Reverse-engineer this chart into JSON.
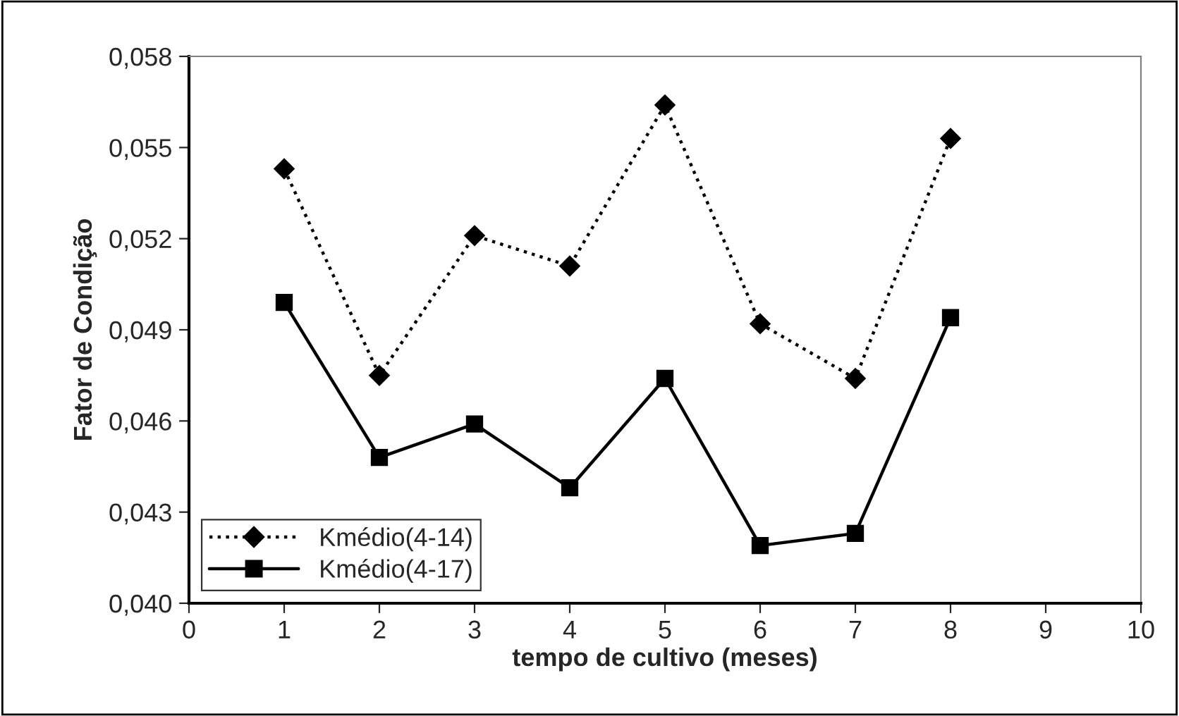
{
  "chart_data": {
    "type": "line",
    "xlabel": "tempo de cultivo (meses)",
    "ylabel": "Fator de Condição",
    "x": [
      1,
      2,
      3,
      4,
      5,
      6,
      7,
      8
    ],
    "series": [
      {
        "name": "Kmédio(4-14)",
        "color": "#000000",
        "marker": "diamond",
        "line_style": "dotted",
        "values": [
          0.0543,
          0.0475,
          0.0521,
          0.0511,
          0.0564,
          0.0492,
          0.0474,
          0.0553
        ]
      },
      {
        "name": "Kmédio(4-17)",
        "color": "#000000",
        "marker": "square",
        "line_style": "solid",
        "values": [
          0.0499,
          0.0448,
          0.0459,
          0.0438,
          0.0474,
          0.0419,
          0.0423,
          0.0494
        ]
      }
    ],
    "xlim": [
      0,
      10
    ],
    "xticks": [
      0,
      1,
      2,
      3,
      4,
      5,
      6,
      7,
      8,
      9,
      10
    ],
    "ylim": [
      0.04,
      0.058
    ],
    "yticks": [
      {
        "value": 0.04,
        "label": "0,040"
      },
      {
        "value": 0.043,
        "label": "0,043"
      },
      {
        "value": 0.046,
        "label": "0,046"
      },
      {
        "value": 0.049,
        "label": "0,049"
      },
      {
        "value": 0.052,
        "label": "0,052"
      },
      {
        "value": 0.055,
        "label": "0,055"
      },
      {
        "value": 0.058,
        "label": "0,058"
      }
    ],
    "grid": false,
    "legend": "bottom left"
  }
}
